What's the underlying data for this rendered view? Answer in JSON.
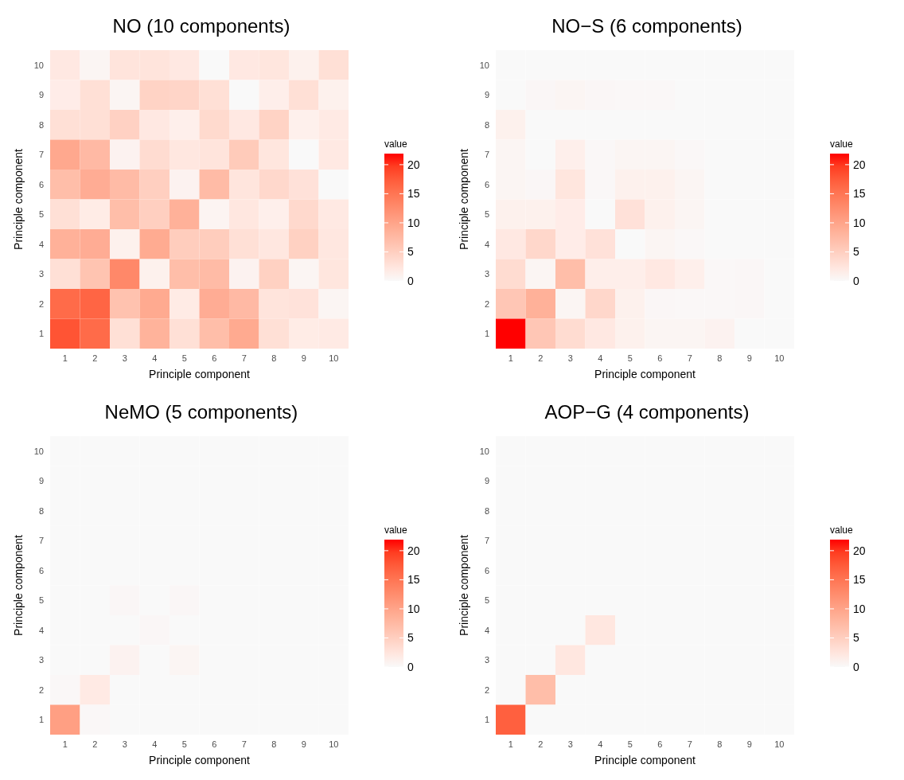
{
  "chart_data": [
    {
      "type": "heatmap",
      "title": "NO (10 components)",
      "xlabel": "Principle component",
      "ylabel": "Principle component",
      "clabel": "value",
      "clim": [
        0,
        21.9
      ],
      "cticks": [
        0,
        5,
        10,
        15,
        20
      ],
      "categories": [
        "1",
        "2",
        "3",
        "4",
        "5",
        "6",
        "7",
        "8",
        "9",
        "10"
      ],
      "y_categories": [
        "10",
        "9",
        "8",
        "7",
        "6",
        "5",
        "4",
        "3",
        "2",
        "1"
      ],
      "cells": [
        [
          2,
          0.5,
          2.5,
          2.5,
          2,
          0,
          2,
          2.3,
          1,
          3
        ],
        [
          1.5,
          3,
          0.5,
          4.5,
          4.3,
          3,
          0,
          1.3,
          3,
          1
        ],
        [
          3,
          3,
          4.7,
          2,
          1.2,
          3.7,
          2,
          4.5,
          1.1,
          1.8
        ],
        [
          9.5,
          7.5,
          0.8,
          3.5,
          2.2,
          2.5,
          5.5,
          2.3,
          0,
          1.9
        ],
        [
          7,
          9,
          7.3,
          5,
          0.8,
          7.3,
          2.4,
          3.9,
          2.8,
          0
        ],
        [
          3,
          1.6,
          7,
          5,
          8.5,
          0.6,
          2.2,
          1.2,
          3.8,
          1.9
        ],
        [
          8.5,
          9,
          1,
          9.2,
          5.2,
          5.2,
          3,
          2.2,
          4.8,
          2.2
        ],
        [
          3,
          6.3,
          13,
          1,
          7,
          7.3,
          0.8,
          4.8,
          0.5,
          2.3
        ],
        [
          16,
          16.5,
          6.5,
          9.3,
          1.7,
          9,
          7.5,
          2.5,
          2.7,
          0.5
        ],
        [
          18,
          16,
          3,
          8.3,
          3,
          7,
          9.3,
          3,
          1.6,
          1.8
        ]
      ]
    },
    {
      "type": "heatmap",
      "title": "NO−S (6 components)",
      "xlabel": "Principle component",
      "ylabel": "Principle component",
      "clabel": "value",
      "clim": [
        0,
        21.9
      ],
      "cticks": [
        0,
        5,
        10,
        15,
        20
      ],
      "categories": [
        "1",
        "2",
        "3",
        "4",
        "5",
        "6",
        "7",
        "8",
        "9",
        "10"
      ],
      "y_categories": [
        "10",
        "9",
        "8",
        "7",
        "6",
        "5",
        "4",
        "3",
        "2",
        "1"
      ],
      "cells": [
        [
          0,
          0,
          0,
          0,
          0,
          0,
          0,
          0,
          0,
          0
        ],
        [
          0,
          0.3,
          0.5,
          0.3,
          0.2,
          0.2,
          0,
          0,
          0,
          0
        ],
        [
          1,
          0,
          0,
          0,
          0,
          0,
          0,
          0,
          0,
          0
        ],
        [
          0.5,
          0,
          1.2,
          0.2,
          0.5,
          0.5,
          0.2,
          0,
          0,
          0
        ],
        [
          0.5,
          0.3,
          2.3,
          0.2,
          1,
          1,
          0.5,
          0,
          0,
          0
        ],
        [
          1,
          1,
          1.5,
          0,
          2.8,
          1,
          0.5,
          0,
          0,
          0
        ],
        [
          2,
          4,
          1.5,
          2.8,
          0,
          0.5,
          0.2,
          0,
          0,
          0
        ],
        [
          3.5,
          0.5,
          7,
          1.3,
          1.3,
          2,
          1.2,
          0.2,
          0.3,
          0
        ],
        [
          6,
          8.5,
          0.5,
          4,
          1,
          0.3,
          0.2,
          0.2,
          0.3,
          0
        ],
        [
          21.9,
          6,
          3.5,
          2,
          1,
          0.5,
          0.5,
          0.8,
          0,
          0
        ]
      ]
    },
    {
      "type": "heatmap",
      "title": "NeMO (5 components)",
      "xlabel": "Principle component",
      "ylabel": "Principle component",
      "clabel": "value",
      "clim": [
        0,
        21.9
      ],
      "cticks": [
        0,
        5,
        10,
        15,
        20
      ],
      "categories": [
        "1",
        "2",
        "3",
        "4",
        "5",
        "6",
        "7",
        "8",
        "9",
        "10"
      ],
      "y_categories": [
        "10",
        "9",
        "8",
        "7",
        "6",
        "5",
        "4",
        "3",
        "2",
        "1"
      ],
      "cells": [
        [
          0,
          0,
          0,
          0,
          0,
          0,
          0,
          0,
          0,
          0
        ],
        [
          0,
          0,
          0,
          0,
          0,
          0,
          0,
          0,
          0,
          0
        ],
        [
          0,
          0,
          0,
          0,
          0,
          0,
          0,
          0,
          0,
          0
        ],
        [
          0,
          0,
          0,
          0,
          0,
          0,
          0,
          0,
          0,
          0
        ],
        [
          0,
          0,
          0,
          0,
          0,
          0,
          0,
          0,
          0,
          0
        ],
        [
          0,
          0,
          0.3,
          0,
          0.3,
          0,
          0,
          0,
          0,
          0
        ],
        [
          0,
          0,
          0,
          0.3,
          0,
          0,
          0,
          0,
          0,
          0
        ],
        [
          0,
          0,
          0.8,
          0,
          0.5,
          0,
          0,
          0,
          0,
          0
        ],
        [
          0.2,
          1.8,
          0,
          0,
          0,
          0,
          0,
          0,
          0,
          0
        ],
        [
          10.5,
          0.2,
          0,
          0,
          0,
          0,
          0,
          0,
          0,
          0
        ]
      ]
    },
    {
      "type": "heatmap",
      "title": "AOP−G (4 components)",
      "xlabel": "Principle component",
      "ylabel": "Principle component",
      "clabel": "value",
      "clim": [
        0,
        21.9
      ],
      "cticks": [
        0,
        5,
        10,
        15,
        20
      ],
      "categories": [
        "1",
        "2",
        "3",
        "4",
        "5",
        "6",
        "7",
        "8",
        "9",
        "10"
      ],
      "y_categories": [
        "10",
        "9",
        "8",
        "7",
        "6",
        "5",
        "4",
        "3",
        "2",
        "1"
      ],
      "cells": [
        [
          0,
          0,
          0,
          0,
          0,
          0,
          0,
          0,
          0,
          0
        ],
        [
          0,
          0,
          0,
          0,
          0,
          0,
          0,
          0,
          0,
          0
        ],
        [
          0,
          0,
          0,
          0,
          0,
          0,
          0,
          0,
          0,
          0
        ],
        [
          0,
          0,
          0,
          0,
          0,
          0,
          0,
          0,
          0,
          0
        ],
        [
          0,
          0,
          0,
          0,
          0,
          0,
          0,
          0,
          0,
          0
        ],
        [
          0,
          0,
          0,
          0,
          0,
          0,
          0,
          0,
          0,
          0
        ],
        [
          0,
          0,
          0,
          2.2,
          0,
          0,
          0,
          0,
          0,
          0
        ],
        [
          0,
          0,
          2.2,
          0,
          0,
          0,
          0,
          0,
          0,
          0
        ],
        [
          0,
          7,
          0,
          0,
          0,
          0,
          0,
          0,
          0,
          0
        ],
        [
          17,
          0,
          0,
          0,
          0,
          0,
          0,
          0,
          0,
          0
        ]
      ]
    }
  ]
}
